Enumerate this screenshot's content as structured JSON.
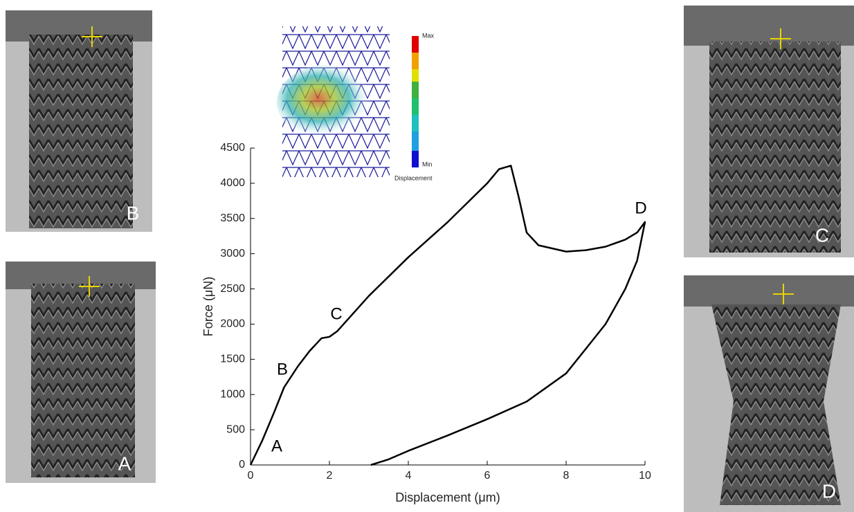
{
  "chart_data": {
    "type": "line",
    "xlabel": "Displacement (μm)",
    "ylabel": "Force (μN)",
    "xlim": [
      0,
      10
    ],
    "ylim": [
      0,
      4500
    ],
    "xticks": [
      0,
      2,
      4,
      6,
      8,
      10
    ],
    "yticks": [
      0,
      500,
      1000,
      1500,
      2000,
      2500,
      3000,
      3500,
      4000,
      4500
    ],
    "annotations": [
      "A",
      "B",
      "C",
      "D"
    ],
    "series": [
      {
        "color": "#000000",
        "x": [
          0,
          0.3,
          0.6,
          0.85,
          1.2,
          1.5,
          1.8,
          2.0,
          2.2,
          3,
          4,
          5,
          6,
          6.3,
          6.6,
          6.8,
          7.0,
          7.3,
          8,
          8.5,
          9,
          9.5,
          9.8,
          10,
          9.8,
          9.5,
          9,
          8.5,
          8,
          7,
          6,
          5,
          4,
          3.5,
          3.05
        ],
        "values": [
          0,
          350,
          750,
          1100,
          1400,
          1620,
          1800,
          1820,
          1900,
          2400,
          2950,
          3450,
          4000,
          4200,
          4250,
          3800,
          3300,
          3120,
          3030,
          3050,
          3100,
          3200,
          3300,
          3450,
          2900,
          2500,
          2000,
          1650,
          1300,
          900,
          650,
          420,
          200,
          80,
          0
        ]
      }
    ]
  },
  "panels": [
    "B",
    "A",
    "C",
    "D"
  ],
  "inset": {
    "max": "Max",
    "min": "Min",
    "label": "Displacement"
  }
}
